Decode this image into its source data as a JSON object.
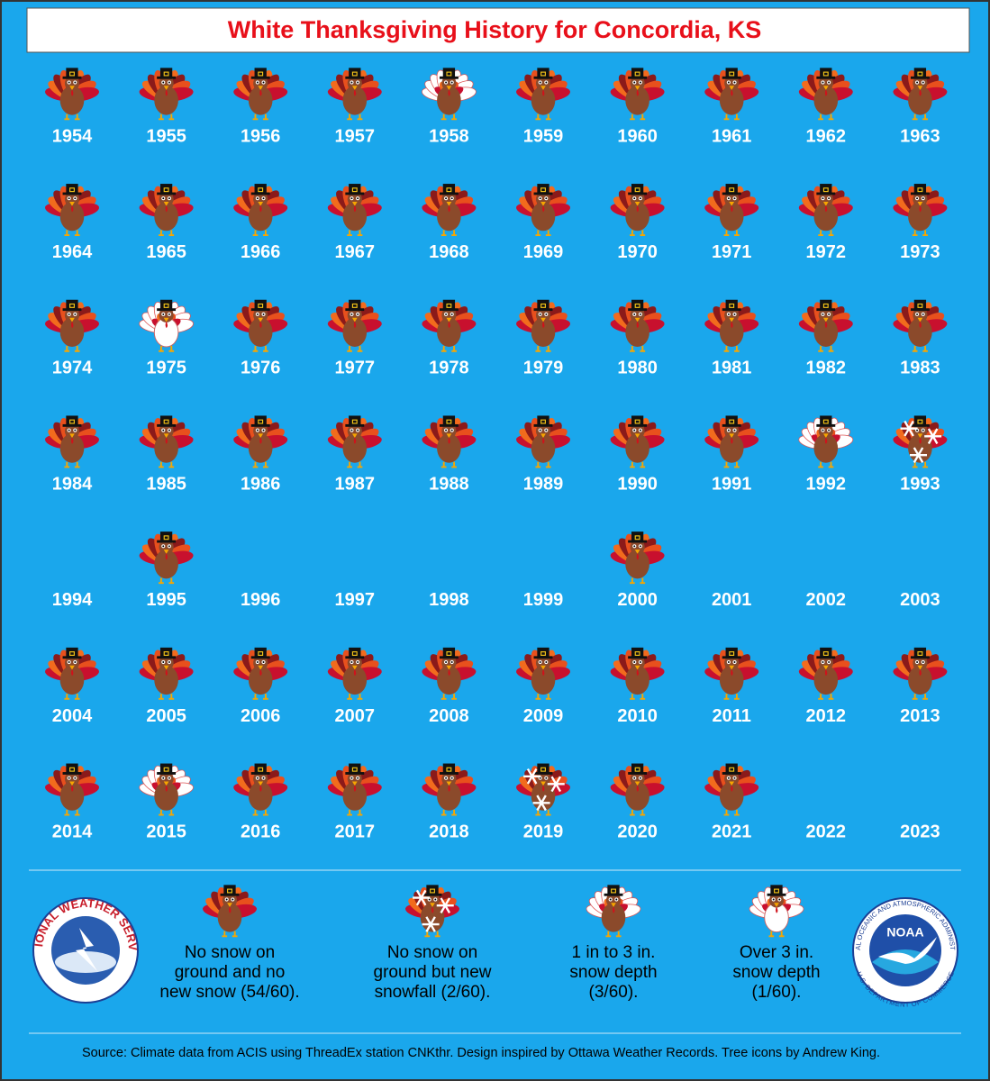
{
  "header": {
    "title": "White Thanksgiving History for Concordia, KS"
  },
  "years": [
    {
      "year": 1954,
      "status": "none"
    },
    {
      "year": 1955,
      "status": "none"
    },
    {
      "year": 1956,
      "status": "none"
    },
    {
      "year": 1957,
      "status": "none"
    },
    {
      "year": 1958,
      "status": "1to3"
    },
    {
      "year": 1959,
      "status": "none"
    },
    {
      "year": 1960,
      "status": "none"
    },
    {
      "year": 1961,
      "status": "none"
    },
    {
      "year": 1962,
      "status": "none"
    },
    {
      "year": 1963,
      "status": "none"
    },
    {
      "year": 1964,
      "status": "none"
    },
    {
      "year": 1965,
      "status": "none"
    },
    {
      "year": 1966,
      "status": "none"
    },
    {
      "year": 1967,
      "status": "none"
    },
    {
      "year": 1968,
      "status": "none"
    },
    {
      "year": 1969,
      "status": "none"
    },
    {
      "year": 1970,
      "status": "none"
    },
    {
      "year": 1971,
      "status": "none"
    },
    {
      "year": 1972,
      "status": "none"
    },
    {
      "year": 1973,
      "status": "none"
    },
    {
      "year": 1974,
      "status": "none"
    },
    {
      "year": 1975,
      "status": "over3"
    },
    {
      "year": 1976,
      "status": "none"
    },
    {
      "year": 1977,
      "status": "none"
    },
    {
      "year": 1978,
      "status": "none"
    },
    {
      "year": 1979,
      "status": "none"
    },
    {
      "year": 1980,
      "status": "none"
    },
    {
      "year": 1981,
      "status": "none"
    },
    {
      "year": 1982,
      "status": "none"
    },
    {
      "year": 1983,
      "status": "none"
    },
    {
      "year": 1984,
      "status": "none"
    },
    {
      "year": 1985,
      "status": "none"
    },
    {
      "year": 1986,
      "status": "none"
    },
    {
      "year": 1987,
      "status": "none"
    },
    {
      "year": 1988,
      "status": "none"
    },
    {
      "year": 1989,
      "status": "none"
    },
    {
      "year": 1990,
      "status": "none"
    },
    {
      "year": 1991,
      "status": "none"
    },
    {
      "year": 1992,
      "status": "1to3"
    },
    {
      "year": 1993,
      "status": "new"
    },
    {
      "year": 1994,
      "status": null
    },
    {
      "year": 1995,
      "status": "none"
    },
    {
      "year": 1996,
      "status": null
    },
    {
      "year": 1997,
      "status": null
    },
    {
      "year": 1998,
      "status": null
    },
    {
      "year": 1999,
      "status": null
    },
    {
      "year": 2000,
      "status": "none"
    },
    {
      "year": 2001,
      "status": null
    },
    {
      "year": 2002,
      "status": null
    },
    {
      "year": 2003,
      "status": null
    },
    {
      "year": 2004,
      "status": "none"
    },
    {
      "year": 2005,
      "status": "none"
    },
    {
      "year": 2006,
      "status": "none"
    },
    {
      "year": 2007,
      "status": "none"
    },
    {
      "year": 2008,
      "status": "none"
    },
    {
      "year": 2009,
      "status": "none"
    },
    {
      "year": 2010,
      "status": "none"
    },
    {
      "year": 2011,
      "status": "none"
    },
    {
      "year": 2012,
      "status": "none"
    },
    {
      "year": 2013,
      "status": "none"
    },
    {
      "year": 2014,
      "status": "none"
    },
    {
      "year": 2015,
      "status": "1to3"
    },
    {
      "year": 2016,
      "status": "none"
    },
    {
      "year": 2017,
      "status": "none"
    },
    {
      "year": 2018,
      "status": "none"
    },
    {
      "year": 2019,
      "status": "new"
    },
    {
      "year": 2020,
      "status": "none"
    },
    {
      "year": 2021,
      "status": "none"
    },
    {
      "year": 2022,
      "status": null
    },
    {
      "year": 2023,
      "status": null
    }
  ],
  "legend": [
    {
      "status": "none",
      "lines": [
        "No snow on",
        "ground and no",
        "new snow (54/60)."
      ]
    },
    {
      "status": "new",
      "lines": [
        "No snow on",
        "ground but new",
        "snowfall (2/60)."
      ]
    },
    {
      "status": "1to3",
      "lines": [
        "1 in to 3 in.",
        "snow depth",
        "(3/60)."
      ]
    },
    {
      "status": "over3",
      "lines": [
        "Over 3 in.",
        "snow depth",
        "(1/60)."
      ]
    }
  ],
  "logos": {
    "nws": "NATIONAL WEATHER SERVICE",
    "noaa": "NOAA",
    "noaa_ring": "NATIONAL OCEANIC AND ATMOSPHERIC ADMINISTRATION",
    "noaa_ring_bottom": "U.S. DEPARTMENT OF COMMERCE"
  },
  "footer": {
    "source": "Source: Climate data from ACIS using ThreadEx station CNKthr. Design inspired by Ottawa Weather Records. Tree icons by Andrew King."
  }
}
